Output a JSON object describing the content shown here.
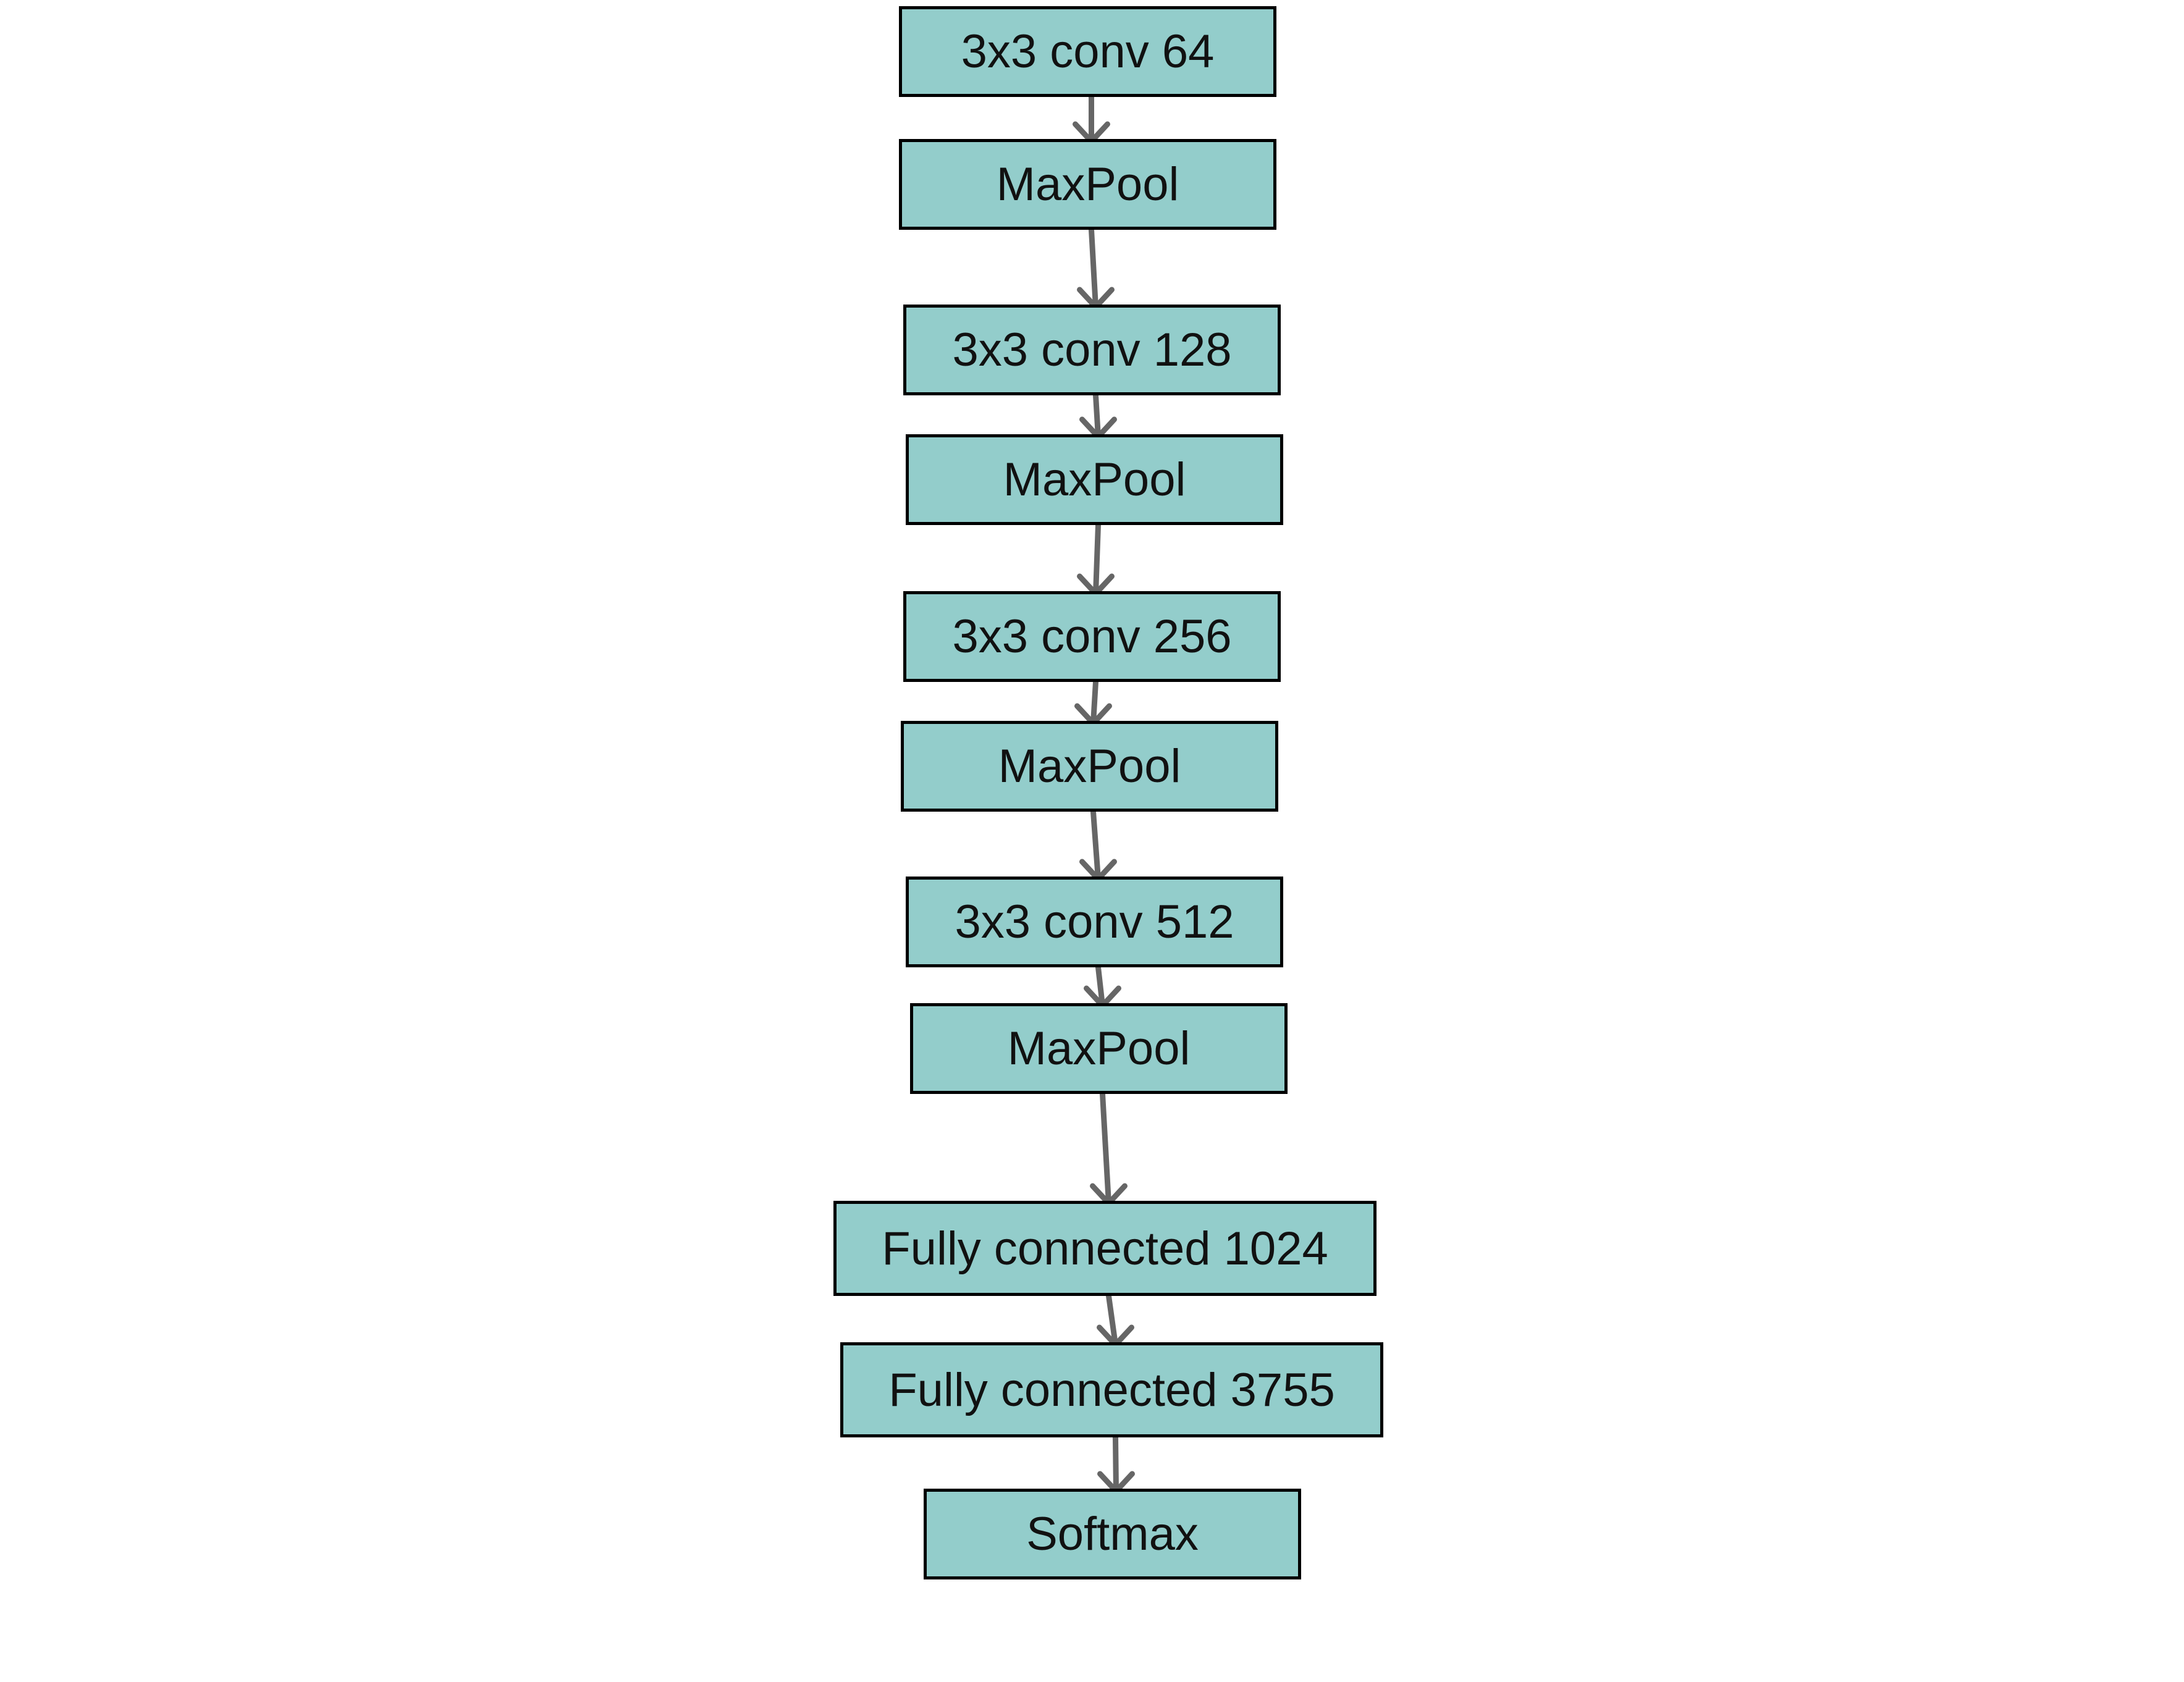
{
  "diagram": {
    "colors": {
      "box_fill": "#93cdcb",
      "box_border": "#000000",
      "arrow": "#666666",
      "background": "#ffffff"
    },
    "layers": [
      {
        "id": "conv-64",
        "label": "3x3 conv 64"
      },
      {
        "id": "maxpool-1",
        "label": "MaxPool"
      },
      {
        "id": "conv-128",
        "label": "3x3 conv 128"
      },
      {
        "id": "maxpool-2",
        "label": "MaxPool"
      },
      {
        "id": "conv-256",
        "label": "3x3 conv 256"
      },
      {
        "id": "maxpool-3",
        "label": "MaxPool"
      },
      {
        "id": "conv-512",
        "label": "3x3 conv 512"
      },
      {
        "id": "maxpool-4",
        "label": "MaxPool"
      },
      {
        "id": "fc-1024",
        "label": "Fully connected 1024"
      },
      {
        "id": "fc-3755",
        "label": "Fully connected 3755"
      },
      {
        "id": "softmax",
        "label": "Softmax"
      }
    ],
    "edges": [
      {
        "from": "conv-64",
        "to": "maxpool-1"
      },
      {
        "from": "maxpool-1",
        "to": "conv-128"
      },
      {
        "from": "conv-128",
        "to": "maxpool-2"
      },
      {
        "from": "maxpool-2",
        "to": "conv-256"
      },
      {
        "from": "conv-256",
        "to": "maxpool-3"
      },
      {
        "from": "maxpool-3",
        "to": "conv-512"
      },
      {
        "from": "conv-512",
        "to": "maxpool-4"
      },
      {
        "from": "maxpool-4",
        "to": "fc-1024"
      },
      {
        "from": "fc-1024",
        "to": "fc-3755"
      },
      {
        "from": "fc-3755",
        "to": "softmax"
      }
    ]
  }
}
